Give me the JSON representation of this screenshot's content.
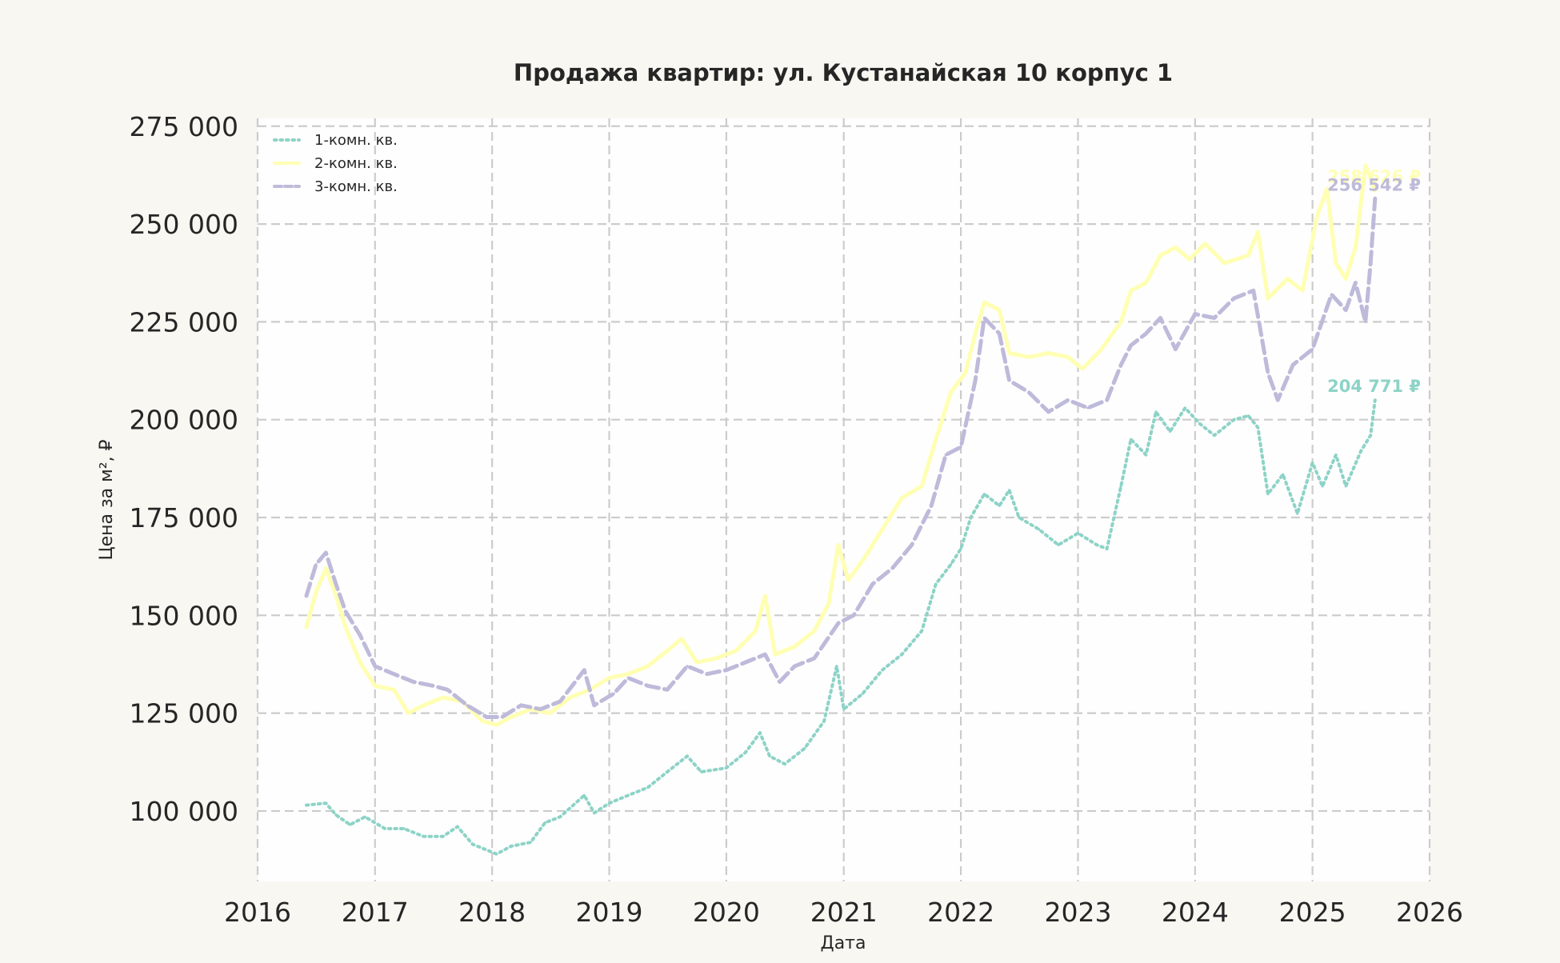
{
  "chart_data": {
    "type": "line",
    "title": "Продажа квартир: ул. Кустанайская 10 корпус 1",
    "xlabel": "Дата",
    "ylabel": "Цена за м², ₽",
    "xlim": [
      "2016-01-01",
      "2026-01-01"
    ],
    "ylim": [
      82000,
      277000
    ],
    "x_ticks": [
      "2016",
      "2017",
      "2018",
      "2019",
      "2020",
      "2021",
      "2022",
      "2023",
      "2024",
      "2025",
      "2026"
    ],
    "y_ticks": [
      100000,
      125000,
      150000,
      175000,
      200000,
      225000,
      250000,
      275000
    ],
    "y_tick_labels": [
      "100 000",
      "125 000",
      "150 000",
      "175 000",
      "200 000",
      "225 000",
      "250 000",
      "275 000"
    ],
    "grid": true,
    "legend_position": "top-left",
    "series": [
      {
        "name": "1-комн. кв.",
        "color": "#8dd3c7",
        "style": "dotted",
        "end_label": "204 771 ₽",
        "points": [
          [
            "2016-06-01",
            101500
          ],
          [
            "2016-08-01",
            102000
          ],
          [
            "2016-09-01",
            99000
          ],
          [
            "2016-10-15",
            96500
          ],
          [
            "2016-12-01",
            98500
          ],
          [
            "2017-02-01",
            95500
          ],
          [
            "2017-04-01",
            95500
          ],
          [
            "2017-06-01",
            93500
          ],
          [
            "2017-08-01",
            93500
          ],
          [
            "2017-09-15",
            96000
          ],
          [
            "2017-11-01",
            91500
          ],
          [
            "2018-01-15",
            89000
          ],
          [
            "2018-03-01",
            91000
          ],
          [
            "2018-05-01",
            92000
          ],
          [
            "2018-06-15",
            97000
          ],
          [
            "2018-08-01",
            98500
          ],
          [
            "2018-10-15",
            104000
          ],
          [
            "2018-11-15",
            99500
          ],
          [
            "2019-01-01",
            102000
          ],
          [
            "2019-03-01",
            104000
          ],
          [
            "2019-05-01",
            106000
          ],
          [
            "2019-07-01",
            110000
          ],
          [
            "2019-09-01",
            114000
          ],
          [
            "2019-10-15",
            110000
          ],
          [
            "2020-01-01",
            111000
          ],
          [
            "2020-03-01",
            115000
          ],
          [
            "2020-04-15",
            120000
          ],
          [
            "2020-05-15",
            114000
          ],
          [
            "2020-07-01",
            112000
          ],
          [
            "2020-09-01",
            116000
          ],
          [
            "2020-11-01",
            123000
          ],
          [
            "2020-12-10",
            137000
          ],
          [
            "2021-01-01",
            126000
          ],
          [
            "2021-03-01",
            130000
          ],
          [
            "2021-05-01",
            136000
          ],
          [
            "2021-07-01",
            140000
          ],
          [
            "2021-09-01",
            146000
          ],
          [
            "2021-10-15",
            158000
          ],
          [
            "2021-12-01",
            163000
          ],
          [
            "2022-01-01",
            167000
          ],
          [
            "2022-02-01",
            175000
          ],
          [
            "2022-03-15",
            181000
          ],
          [
            "2022-05-01",
            178000
          ],
          [
            "2022-06-01",
            182000
          ],
          [
            "2022-07-01",
            175000
          ],
          [
            "2022-09-01",
            172000
          ],
          [
            "2022-11-01",
            168000
          ],
          [
            "2023-01-01",
            171000
          ],
          [
            "2023-03-01",
            168000
          ],
          [
            "2023-04-01",
            167000
          ],
          [
            "2023-05-15",
            183000
          ],
          [
            "2023-06-15",
            195000
          ],
          [
            "2023-08-01",
            191000
          ],
          [
            "2023-09-01",
            202000
          ],
          [
            "2023-10-15",
            197000
          ],
          [
            "2023-12-01",
            203000
          ],
          [
            "2024-01-15",
            199000
          ],
          [
            "2024-03-01",
            196000
          ],
          [
            "2024-05-01",
            200000
          ],
          [
            "2024-06-15",
            201000
          ],
          [
            "2024-07-15",
            198000
          ],
          [
            "2024-08-15",
            181000
          ],
          [
            "2024-10-01",
            186000
          ],
          [
            "2024-11-15",
            176000
          ],
          [
            "2025-01-01",
            189000
          ],
          [
            "2025-02-01",
            183000
          ],
          [
            "2025-03-15",
            191000
          ],
          [
            "2025-04-15",
            183000
          ],
          [
            "2025-06-01",
            192000
          ],
          [
            "2025-07-01",
            196000
          ],
          [
            "2025-07-15",
            205000
          ]
        ]
      },
      {
        "name": "2-комн. кв.",
        "color": "#ffffb3",
        "style": "solid",
        "end_label": "258 626 ₽",
        "points": [
          [
            "2016-06-01",
            147000
          ],
          [
            "2016-07-01",
            156000
          ],
          [
            "2016-08-01",
            162000
          ],
          [
            "2016-09-01",
            155000
          ],
          [
            "2016-10-01",
            147000
          ],
          [
            "2016-11-15",
            138000
          ],
          [
            "2017-01-01",
            132000
          ],
          [
            "2017-03-01",
            131000
          ],
          [
            "2017-04-15",
            125000
          ],
          [
            "2017-06-01",
            127000
          ],
          [
            "2017-08-01",
            129000
          ],
          [
            "2017-10-01",
            128000
          ],
          [
            "2017-12-01",
            123000
          ],
          [
            "2018-01-15",
            122000
          ],
          [
            "2018-03-01",
            124000
          ],
          [
            "2018-05-01",
            126000
          ],
          [
            "2018-07-01",
            125000
          ],
          [
            "2018-09-01",
            129000
          ],
          [
            "2018-11-01",
            131000
          ],
          [
            "2019-01-01",
            134000
          ],
          [
            "2019-03-01",
            135000
          ],
          [
            "2019-05-01",
            137000
          ],
          [
            "2019-07-01",
            141000
          ],
          [
            "2019-08-15",
            144000
          ],
          [
            "2019-10-01",
            138000
          ],
          [
            "2019-12-01",
            139000
          ],
          [
            "2020-02-01",
            141000
          ],
          [
            "2020-04-01",
            146000
          ],
          [
            "2020-05-01",
            155000
          ],
          [
            "2020-06-01",
            140000
          ],
          [
            "2020-08-01",
            142000
          ],
          [
            "2020-10-01",
            146000
          ],
          [
            "2020-11-15",
            153000
          ],
          [
            "2020-12-15",
            168000
          ],
          [
            "2021-01-15",
            159000
          ],
          [
            "2021-03-01",
            164000
          ],
          [
            "2021-05-01",
            172000
          ],
          [
            "2021-07-01",
            180000
          ],
          [
            "2021-09-01",
            183000
          ],
          [
            "2021-10-15",
            195000
          ],
          [
            "2021-12-01",
            207000
          ],
          [
            "2022-01-15",
            212000
          ],
          [
            "2022-02-15",
            222000
          ],
          [
            "2022-03-15",
            230000
          ],
          [
            "2022-05-01",
            228000
          ],
          [
            "2022-06-01",
            217000
          ],
          [
            "2022-08-01",
            216000
          ],
          [
            "2022-10-01",
            217000
          ],
          [
            "2022-12-01",
            216000
          ],
          [
            "2023-01-15",
            213000
          ],
          [
            "2023-03-15",
            218000
          ],
          [
            "2023-05-15",
            225000
          ],
          [
            "2023-06-15",
            233000
          ],
          [
            "2023-08-01",
            235000
          ],
          [
            "2023-09-15",
            242000
          ],
          [
            "2023-11-01",
            244000
          ],
          [
            "2023-12-15",
            241000
          ],
          [
            "2024-02-01",
            245000
          ],
          [
            "2024-04-01",
            240000
          ],
          [
            "2024-06-15",
            242000
          ],
          [
            "2024-07-15",
            248000
          ],
          [
            "2024-08-15",
            231000
          ],
          [
            "2024-10-15",
            236000
          ],
          [
            "2024-12-01",
            233000
          ],
          [
            "2025-01-15",
            252000
          ],
          [
            "2025-02-15",
            259000
          ],
          [
            "2025-03-15",
            240000
          ],
          [
            "2025-04-15",
            236000
          ],
          [
            "2025-05-15",
            244000
          ],
          [
            "2025-06-15",
            265000
          ],
          [
            "2025-07-15",
            258600
          ]
        ]
      },
      {
        "name": "3-комн. кв.",
        "color": "#bebada",
        "style": "dashed",
        "end_label": "256 542 ₽",
        "points": [
          [
            "2016-06-01",
            155000
          ],
          [
            "2016-07-01",
            163000
          ],
          [
            "2016-08-01",
            166000
          ],
          [
            "2016-09-01",
            158000
          ],
          [
            "2016-10-01",
            151000
          ],
          [
            "2016-11-15",
            145000
          ],
          [
            "2017-01-01",
            137000
          ],
          [
            "2017-03-01",
            135000
          ],
          [
            "2017-05-01",
            133000
          ],
          [
            "2017-07-01",
            132000
          ],
          [
            "2017-08-15",
            131000
          ],
          [
            "2017-10-15",
            127000
          ],
          [
            "2017-12-15",
            124000
          ],
          [
            "2018-02-01",
            124000
          ],
          [
            "2018-04-01",
            127000
          ],
          [
            "2018-06-01",
            126000
          ],
          [
            "2018-08-01",
            128000
          ],
          [
            "2018-10-15",
            136000
          ],
          [
            "2018-11-15",
            127000
          ],
          [
            "2019-01-15",
            130000
          ],
          [
            "2019-03-01",
            134000
          ],
          [
            "2019-05-01",
            132000
          ],
          [
            "2019-07-01",
            131000
          ],
          [
            "2019-09-01",
            137000
          ],
          [
            "2019-11-01",
            135000
          ],
          [
            "2020-01-01",
            136000
          ],
          [
            "2020-03-01",
            138000
          ],
          [
            "2020-05-01",
            140000
          ],
          [
            "2020-06-15",
            133000
          ],
          [
            "2020-08-01",
            137000
          ],
          [
            "2020-10-01",
            139000
          ],
          [
            "2020-12-15",
            148000
          ],
          [
            "2021-02-01",
            150000
          ],
          [
            "2021-04-01",
            158000
          ],
          [
            "2021-06-01",
            162000
          ],
          [
            "2021-08-01",
            168000
          ],
          [
            "2021-10-01",
            178000
          ],
          [
            "2021-11-15",
            191000
          ],
          [
            "2022-01-01",
            193000
          ],
          [
            "2022-02-15",
            210000
          ],
          [
            "2022-03-15",
            226000
          ],
          [
            "2022-05-01",
            222000
          ],
          [
            "2022-06-01",
            210000
          ],
          [
            "2022-08-01",
            207000
          ],
          [
            "2022-10-01",
            202000
          ],
          [
            "2022-12-01",
            205000
          ],
          [
            "2023-02-01",
            203000
          ],
          [
            "2023-04-01",
            205000
          ],
          [
            "2023-05-15",
            214000
          ],
          [
            "2023-06-15",
            219000
          ],
          [
            "2023-08-01",
            222000
          ],
          [
            "2023-09-15",
            226000
          ],
          [
            "2023-11-01",
            218000
          ],
          [
            "2024-01-01",
            227000
          ],
          [
            "2024-03-01",
            226000
          ],
          [
            "2024-05-01",
            231000
          ],
          [
            "2024-07-01",
            233000
          ],
          [
            "2024-08-15",
            212000
          ],
          [
            "2024-09-15",
            205000
          ],
          [
            "2024-11-01",
            214000
          ],
          [
            "2025-01-01",
            218000
          ],
          [
            "2025-03-01",
            232000
          ],
          [
            "2025-04-15",
            228000
          ],
          [
            "2025-05-15",
            235000
          ],
          [
            "2025-06-15",
            225000
          ],
          [
            "2025-07-01",
            240000
          ],
          [
            "2025-07-15",
            256500
          ]
        ]
      }
    ]
  }
}
